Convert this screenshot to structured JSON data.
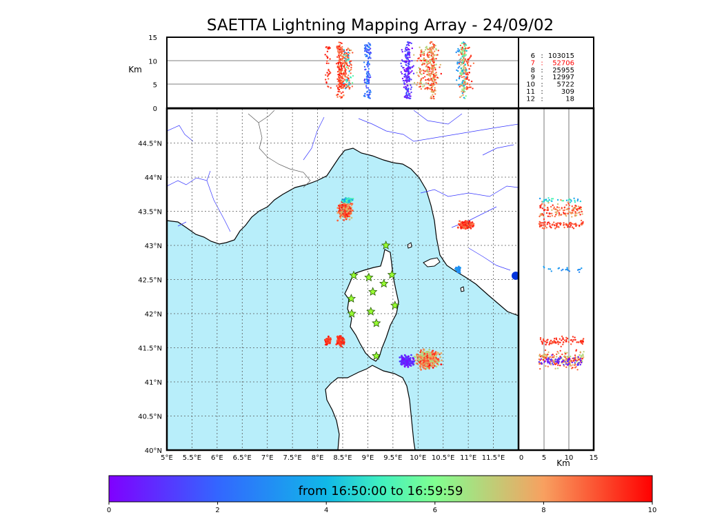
{
  "title": "SAETTA Lightning Mapping Array - 24/09/02",
  "top_panel": {
    "ylabel": "Km",
    "yticks": [
      "15",
      "10",
      "5",
      "0"
    ]
  },
  "side_panel": {
    "xlabel": "Km",
    "xticks": [
      "0",
      "5",
      "10",
      "15"
    ]
  },
  "map": {
    "lat_labels": [
      "44.5°N",
      "44°N",
      "43.5°N",
      "43°N",
      "42.5°N",
      "42°N",
      "41.5°N",
      "41°N",
      "40.5°N",
      "40°N"
    ],
    "lon_labels": [
      "5°E",
      "5.5°E",
      "6°E",
      "6.5°E",
      "7°E",
      "7.5°E",
      "8°E",
      "8.5°E",
      "9°E",
      "9.5°E",
      "10°E",
      "10.5°E",
      "11°E",
      "11.5°E"
    ],
    "sea_color": "#b8eefa",
    "river_color": "#3333ff",
    "station_color": "#99ff33",
    "stations": [
      {
        "lon": 9.36,
        "lat": 43.0
      },
      {
        "lon": 8.72,
        "lat": 42.56
      },
      {
        "lon": 9.02,
        "lat": 42.53
      },
      {
        "lon": 9.48,
        "lat": 42.57
      },
      {
        "lon": 9.32,
        "lat": 42.44
      },
      {
        "lon": 9.1,
        "lat": 42.32
      },
      {
        "lon": 8.67,
        "lat": 42.22
      },
      {
        "lon": 9.54,
        "lat": 42.12
      },
      {
        "lon": 9.06,
        "lat": 42.03
      },
      {
        "lon": 8.68,
        "lat": 42.0
      },
      {
        "lon": 9.17,
        "lat": 41.86
      },
      {
        "lon": 9.17,
        "lat": 41.38
      }
    ]
  },
  "counts": [
    {
      "n": "6",
      "sep": ":",
      "v": "103015",
      "color": "#000000"
    },
    {
      "n": "7",
      "sep": ":",
      "v": "52706",
      "color": "#ff0000"
    },
    {
      "n": "8",
      "sep": ":",
      "v": "25955",
      "color": "#000000"
    },
    {
      "n": "9",
      "sep": ":",
      "v": "12997",
      "color": "#000000"
    },
    {
      "n": "10",
      "sep": ":",
      "v": "5722",
      "color": "#000000"
    },
    {
      "n": "11",
      "sep": ":",
      "v": "309",
      "color": "#000000"
    },
    {
      "n": "12",
      "sep": ":",
      "v": "18",
      "color": "#000000"
    }
  ],
  "colorbar": {
    "label": "from 16:50:00 to 16:59:59",
    "ticks": [
      "0",
      "2",
      "4",
      "6",
      "8",
      "10"
    ],
    "colormap": "rainbow"
  },
  "chart_data": {
    "type": "scatter",
    "title": "SAETTA Lightning Mapping Array - 24/09/02",
    "xlim": [
      5,
      12
    ],
    "ylim": [
      40,
      45
    ],
    "altitude_range_km": [
      0,
      15
    ],
    "color_scale": "time in minutes, 0 to 10",
    "clusters": [
      {
        "lon": 8.55,
        "lat": 43.55,
        "alt_km": 8,
        "t": 7.8
      },
      {
        "lon": 10.95,
        "lat": 43.3,
        "alt_km": 8,
        "t": 9.2
      },
      {
        "lon": 10.8,
        "lat": 42.65,
        "alt_km": 9,
        "t": 3.0
      },
      {
        "lon": 8.4,
        "lat": 41.6,
        "alt_km": 7,
        "t": 9.4
      },
      {
        "lon": 10.2,
        "lat": 41.35,
        "alt_km": 8,
        "t": 8.8
      },
      {
        "lon": 9.75,
        "lat": 41.3,
        "alt_km": 6,
        "t": 0.6
      }
    ]
  }
}
